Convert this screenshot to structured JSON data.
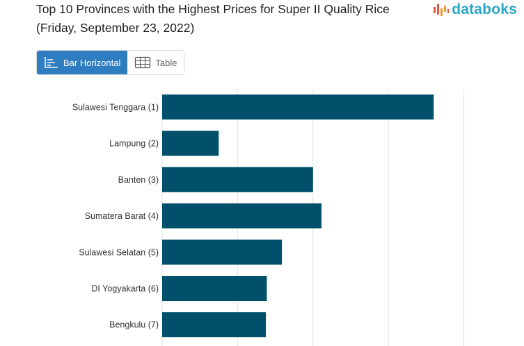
{
  "title": "Top 10 Provinces with the Highest Prices for Super II Quality Rice (Friday, September 23, 2022)",
  "logo": {
    "text": "databoks",
    "icon": "bar-pulse-icon",
    "color": "#2aa6c3"
  },
  "tabs": [
    {
      "label": "Bar Horizontal",
      "icon": "bar-chart-icon",
      "active": true
    },
    {
      "label": "Table",
      "icon": "table-grid-icon",
      "active": false
    }
  ],
  "colors": {
    "bar": "#00506b",
    "grid": "#e3e3e3",
    "accent": "#2f7dc1"
  },
  "chart_data": {
    "type": "bar",
    "orientation": "horizontal",
    "categories": [
      "Sulawesi Tenggara (1)",
      "Lampung (2)",
      "Banten (3)",
      "Sumatera Barat (4)",
      "Sulawesi Selatan (5)",
      "DI Yogyakarta (6)",
      "Bengkulu (7)"
    ],
    "values": [
      14400,
      3000,
      8000,
      8450,
      6350,
      5550,
      5500
    ],
    "xlim": [
      0,
      20000
    ],
    "grid": true,
    "xlabel": "",
    "ylabel": ""
  }
}
